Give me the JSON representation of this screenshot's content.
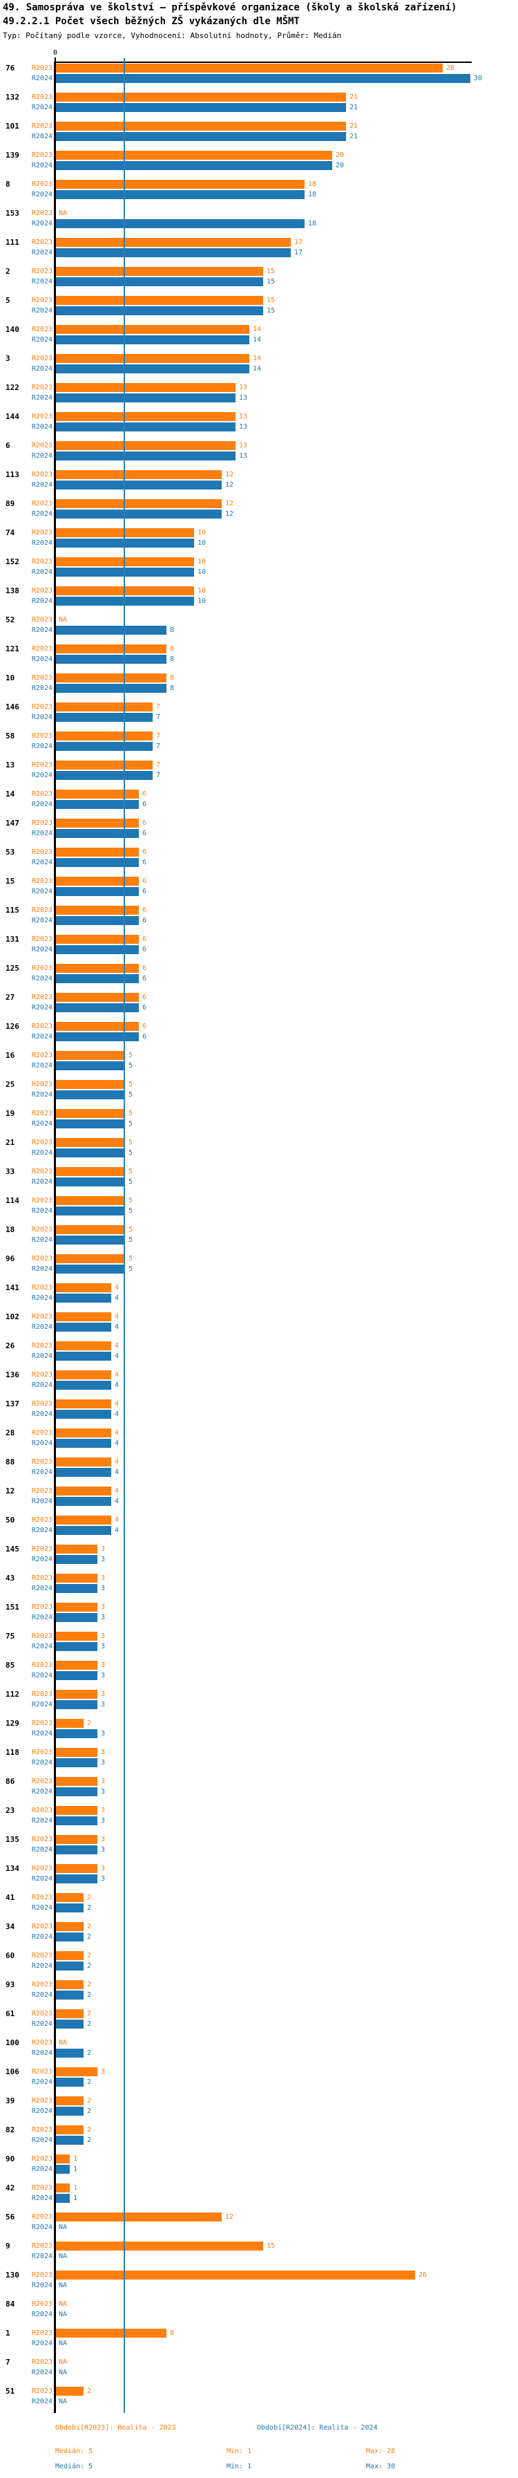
{
  "title": "49. Samospráva ve školství – příspěvkové organizace (školy a školská zařízení)",
  "subtitle": "49.2.2.1 Počet všech běžných ZŠ vykázaných dle MŠMT",
  "meta_line": "Typ: Počítaný podle vzorce, Vyhodnocení: Absolutní hodnoty, Průměr: Medián",
  "colors": {
    "r2023": "#ff7f0e",
    "r2024": "#1f77b4",
    "median_line": "#2e7eb8",
    "axis": "#000000"
  },
  "chart_data": {
    "type": "bar",
    "orientation": "horizontal-grouped",
    "series": [
      "R2023",
      "R2024"
    ],
    "na_label": "NA",
    "xlim": [
      0,
      30
    ],
    "zero_tick_label": "0",
    "median_line_value": 5,
    "groups": [
      {
        "id": "76",
        "R2023": 28,
        "R2024": 30
      },
      {
        "id": "132",
        "R2023": 21,
        "R2024": 21
      },
      {
        "id": "101",
        "R2023": 21,
        "R2024": 21
      },
      {
        "id": "139",
        "R2023": 20,
        "R2024": 20
      },
      {
        "id": "8",
        "R2023": 18,
        "R2024": 18
      },
      {
        "id": "153",
        "R2023": null,
        "R2024": 18
      },
      {
        "id": "111",
        "R2023": 17,
        "R2024": 17
      },
      {
        "id": "2",
        "R2023": 15,
        "R2024": 15
      },
      {
        "id": "5",
        "R2023": 15,
        "R2024": 15
      },
      {
        "id": "140",
        "R2023": 14,
        "R2024": 14
      },
      {
        "id": "3",
        "R2023": 14,
        "R2024": 14
      },
      {
        "id": "122",
        "R2023": 13,
        "R2024": 13
      },
      {
        "id": "144",
        "R2023": 13,
        "R2024": 13
      },
      {
        "id": "6",
        "R2023": 13,
        "R2024": 13
      },
      {
        "id": "113",
        "R2023": 12,
        "R2024": 12
      },
      {
        "id": "89",
        "R2023": 12,
        "R2024": 12
      },
      {
        "id": "74",
        "R2023": 10,
        "R2024": 10
      },
      {
        "id": "152",
        "R2023": 10,
        "R2024": 10
      },
      {
        "id": "138",
        "R2023": 10,
        "R2024": 10
      },
      {
        "id": "52",
        "R2023": null,
        "R2024": 8
      },
      {
        "id": "121",
        "R2023": 8,
        "R2024": 8
      },
      {
        "id": "10",
        "R2023": 8,
        "R2024": 8
      },
      {
        "id": "146",
        "R2023": 7,
        "R2024": 7
      },
      {
        "id": "58",
        "R2023": 7,
        "R2024": 7
      },
      {
        "id": "13",
        "R2023": 7,
        "R2024": 7
      },
      {
        "id": "14",
        "R2023": 6,
        "R2024": 6
      },
      {
        "id": "147",
        "R2023": 6,
        "R2024": 6
      },
      {
        "id": "53",
        "R2023": 6,
        "R2024": 6
      },
      {
        "id": "15",
        "R2023": 6,
        "R2024": 6
      },
      {
        "id": "115",
        "R2023": 6,
        "R2024": 6
      },
      {
        "id": "131",
        "R2023": 6,
        "R2024": 6
      },
      {
        "id": "125",
        "R2023": 6,
        "R2024": 6
      },
      {
        "id": "27",
        "R2023": 6,
        "R2024": 6
      },
      {
        "id": "126",
        "R2023": 6,
        "R2024": 6
      },
      {
        "id": "16",
        "R2023": 5,
        "R2024": 5
      },
      {
        "id": "25",
        "R2023": 5,
        "R2024": 5
      },
      {
        "id": "19",
        "R2023": 5,
        "R2024": 5
      },
      {
        "id": "21",
        "R2023": 5,
        "R2024": 5
      },
      {
        "id": "33",
        "R2023": 5,
        "R2024": 5
      },
      {
        "id": "114",
        "R2023": 5,
        "R2024": 5
      },
      {
        "id": "18",
        "R2023": 5,
        "R2024": 5
      },
      {
        "id": "96",
        "R2023": 5,
        "R2024": 5
      },
      {
        "id": "141",
        "R2023": 4,
        "R2024": 4
      },
      {
        "id": "102",
        "R2023": 4,
        "R2024": 4
      },
      {
        "id": "26",
        "R2023": 4,
        "R2024": 4
      },
      {
        "id": "136",
        "R2023": 4,
        "R2024": 4
      },
      {
        "id": "137",
        "R2023": 4,
        "R2024": 4
      },
      {
        "id": "28",
        "R2023": 4,
        "R2024": 4
      },
      {
        "id": "88",
        "R2023": 4,
        "R2024": 4
      },
      {
        "id": "12",
        "R2023": 4,
        "R2024": 4
      },
      {
        "id": "50",
        "R2023": 4,
        "R2024": 4
      },
      {
        "id": "145",
        "R2023": 3,
        "R2024": 3
      },
      {
        "id": "43",
        "R2023": 3,
        "R2024": 3
      },
      {
        "id": "151",
        "R2023": 3,
        "R2024": 3
      },
      {
        "id": "75",
        "R2023": 3,
        "R2024": 3
      },
      {
        "id": "85",
        "R2023": 3,
        "R2024": 3
      },
      {
        "id": "112",
        "R2023": 3,
        "R2024": 3
      },
      {
        "id": "129",
        "R2023": 2,
        "R2024": 3
      },
      {
        "id": "118",
        "R2023": 3,
        "R2024": 3
      },
      {
        "id": "86",
        "R2023": 3,
        "R2024": 3
      },
      {
        "id": "23",
        "R2023": 3,
        "R2024": 3
      },
      {
        "id": "135",
        "R2023": 3,
        "R2024": 3
      },
      {
        "id": "134",
        "R2023": 3,
        "R2024": 3
      },
      {
        "id": "41",
        "R2023": 2,
        "R2024": 2
      },
      {
        "id": "34",
        "R2023": 2,
        "R2024": 2
      },
      {
        "id": "60",
        "R2023": 2,
        "R2024": 2
      },
      {
        "id": "93",
        "R2023": 2,
        "R2024": 2
      },
      {
        "id": "61",
        "R2023": 2,
        "R2024": 2
      },
      {
        "id": "100",
        "R2023": null,
        "R2024": 2
      },
      {
        "id": "106",
        "R2023": 3,
        "R2024": 2
      },
      {
        "id": "39",
        "R2023": 2,
        "R2024": 2
      },
      {
        "id": "82",
        "R2023": 2,
        "R2024": 2
      },
      {
        "id": "90",
        "R2023": 1,
        "R2024": 1
      },
      {
        "id": "42",
        "R2023": 1,
        "R2024": 1
      },
      {
        "id": "56",
        "R2023": 12,
        "R2024": null
      },
      {
        "id": "9",
        "R2023": 15,
        "R2024": null
      },
      {
        "id": "130",
        "R2023": 26,
        "R2024": null
      },
      {
        "id": "84",
        "R2023": null,
        "R2024": null
      },
      {
        "id": "1",
        "R2023": 8,
        "R2024": null
      },
      {
        "id": "7",
        "R2023": null,
        "R2024": null
      },
      {
        "id": "51",
        "R2023": 2,
        "R2024": null
      }
    ]
  },
  "legend": {
    "r2023_label": "Období[R2023]: Realita - 2023",
    "r2024_label": "Období[R2024]: Realita - 2024",
    "r2023_median": "Medián: 5",
    "r2023_min": "Min: 1",
    "r2023_max": "Max: 28",
    "r2024_median": "Medián: 5",
    "r2024_min": "Min: 1",
    "r2024_max": "Max: 30"
  }
}
